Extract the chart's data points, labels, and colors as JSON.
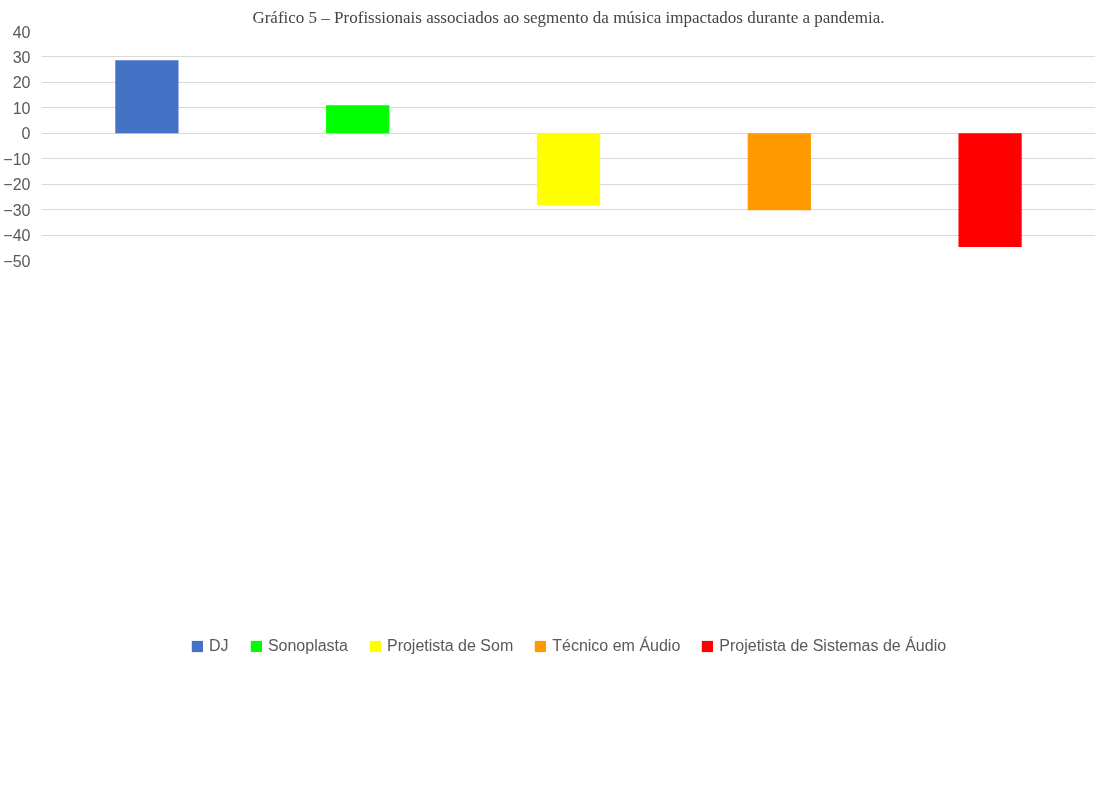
{
  "chart_data": {
    "type": "bar",
    "title": "Gráfico 5 – Profissionais associados ao segmento da música impactados durante a pandemia.",
    "categories": [
      null,
      null,
      null,
      null,
      null
    ],
    "series": [
      {
        "name": "DJ",
        "color": "#4472c4",
        "values": [
          28.7,
          null,
          null,
          null,
          null
        ]
      },
      {
        "name": "Sonoplasta",
        "color": "#00ff00",
        "values": [
          null,
          11,
          null,
          null,
          null
        ]
      },
      {
        "name": "Projetista de Som",
        "color": "#ffff00",
        "values": [
          null,
          null,
          -28.3,
          null,
          null
        ]
      },
      {
        "name": "Técnico em Áudio",
        "color": "#ff9900",
        "values": [
          null,
          null,
          null,
          -30.3,
          null
        ]
      },
      {
        "name": "Projetista de Sistemas de Áudio",
        "color": "#ff0000",
        "values": [
          null,
          null,
          null,
          null,
          -44.7
        ]
      }
    ],
    "ylim": [
      -50,
      40
    ],
    "yticks": [
      -50,
      -40,
      -30,
      -20,
      -10,
      0,
      10,
      20,
      30,
      40
    ],
    "grid": "y",
    "legend": "bottom"
  }
}
